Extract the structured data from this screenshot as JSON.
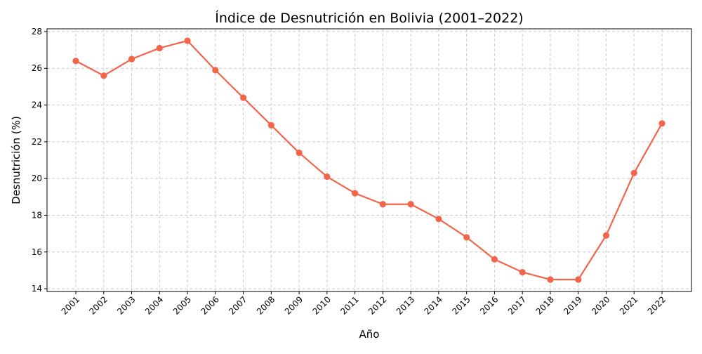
{
  "chart_data": {
    "type": "line",
    "title": "Índice de Desnutrición en Bolivia (2001–2022)",
    "xlabel": "Año",
    "ylabel": "Desnutrición (%)",
    "x": [
      "2001",
      "2002",
      "2003",
      "2004",
      "2005",
      "2006",
      "2007",
      "2008",
      "2009",
      "2010",
      "2011",
      "2012",
      "2013",
      "2014",
      "2015",
      "2016",
      "2017",
      "2018",
      "2019",
      "2020",
      "2021",
      "2022"
    ],
    "series": [
      {
        "values": [
          26.4,
          25.6,
          26.5,
          27.1,
          27.5,
          25.9,
          24.4,
          22.9,
          21.4,
          20.1,
          19.2,
          18.6,
          18.6,
          17.8,
          16.8,
          15.6,
          14.9,
          14.5,
          14.5,
          16.9,
          20.3,
          23.0
        ],
        "color": "#f2654a"
      }
    ],
    "ylim": [
      13.85,
      28.15
    ],
    "yticks": [
      14,
      16,
      18,
      20,
      22,
      24,
      26,
      28
    ],
    "grid": true,
    "legend": "none"
  }
}
